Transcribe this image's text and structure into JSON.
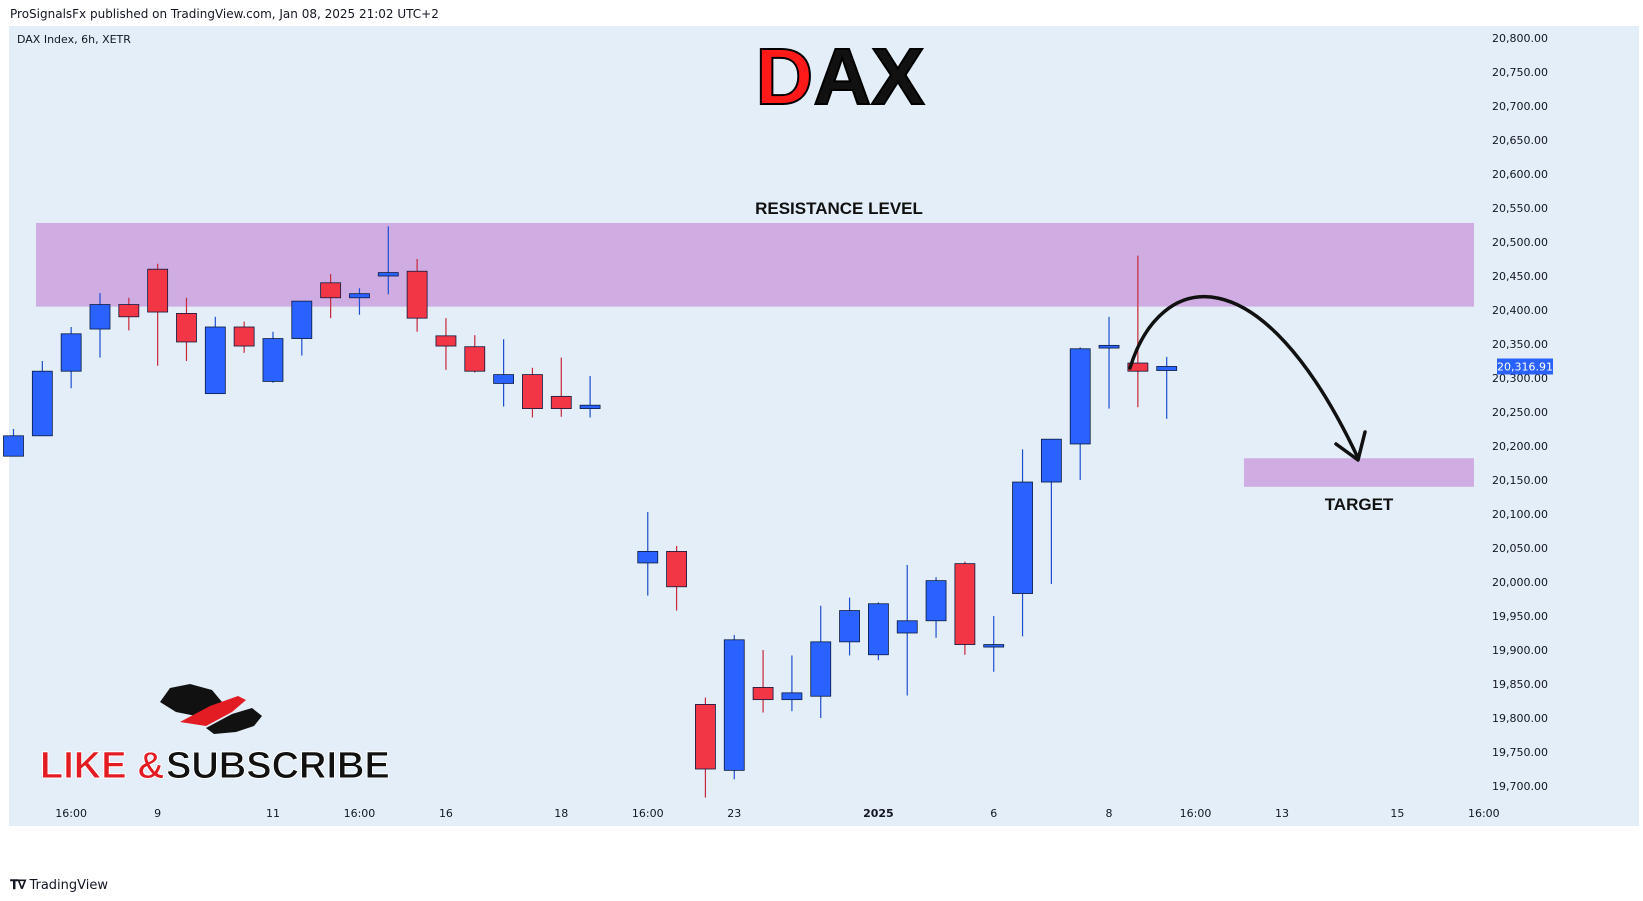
{
  "header": {
    "published": "ProSignalsFx published on TradingView.com, Jan 08, 2025 21:02 UTC+2"
  },
  "footer": {
    "brand": "TradingView",
    "logo_icon": "tradingview-logo-icon"
  },
  "chart_data": {
    "type": "candlestick",
    "title": "DAX",
    "title_first_letter": "D",
    "title_rest": "AX",
    "symbol_info": "DAX Index, 6h, XETR",
    "ylim": [
      19680,
      20820
    ],
    "y_ticks": [
      "20,800.00",
      "20,750.00",
      "20,700.00",
      "20,650.00",
      "20,600.00",
      "20,550.00",
      "20,500.00",
      "20,450.00",
      "20,400.00",
      "20,350.00",
      "20,300.00",
      "20,250.00",
      "20,200.00",
      "20,150.00",
      "20,100.00",
      "20,050.00",
      "20,000.00",
      "19,950.00",
      "19,900.00",
      "19,850.00",
      "19,800.00",
      "19,750.00",
      "19,700.00"
    ],
    "y_tick_values": [
      20800,
      20750,
      20700,
      20650,
      20600,
      20550,
      20500,
      20450,
      20400,
      20350,
      20300,
      20250,
      20200,
      20150,
      20100,
      20050,
      20000,
      19950,
      19900,
      19850,
      19800,
      19750,
      19700
    ],
    "x_tick_labels": [
      {
        "label": "16:00",
        "slot": 2
      },
      {
        "label": "9",
        "slot": 5
      },
      {
        "label": "11",
        "slot": 9
      },
      {
        "label": "16:00",
        "slot": 12
      },
      {
        "label": "16",
        "slot": 15
      },
      {
        "label": "18",
        "slot": 19
      },
      {
        "label": "16:00",
        "slot": 22
      },
      {
        "label": "23",
        "slot": 25
      },
      {
        "label": "2025",
        "slot": 30,
        "bold": true
      },
      {
        "label": "6",
        "slot": 34
      },
      {
        "label": "8",
        "slot": 38
      },
      {
        "label": "16:00",
        "slot": 41
      },
      {
        "label": "13",
        "slot": 44
      },
      {
        "label": "15",
        "slot": 48
      },
      {
        "label": "16:00",
        "slot": 51
      }
    ],
    "last_price": "20,316.91",
    "last_price_value": 20316.91,
    "candles": [
      {
        "slot": 0,
        "o": 20185,
        "h": 20225,
        "l": 20185,
        "c": 20215
      },
      {
        "slot": 1,
        "o": 20215,
        "h": 20325,
        "l": 20215,
        "c": 20310
      },
      {
        "slot": 2,
        "o": 20310,
        "h": 20375,
        "l": 20285,
        "c": 20365
      },
      {
        "slot": 3,
        "o": 20372,
        "h": 20425,
        "l": 20330,
        "c": 20408
      },
      {
        "slot": 4,
        "o": 20408,
        "h": 20418,
        "l": 20370,
        "c": 20390
      },
      {
        "slot": 5,
        "o": 20460,
        "h": 20468,
        "l": 20318,
        "c": 20397
      },
      {
        "slot": 6,
        "o": 20395,
        "h": 20418,
        "l": 20325,
        "c": 20353
      },
      {
        "slot": 7,
        "o": 20277,
        "h": 20390,
        "l": 20277,
        "c": 20375
      },
      {
        "slot": 8,
        "o": 20375,
        "h": 20383,
        "l": 20337,
        "c": 20347
      },
      {
        "slot": 9,
        "o": 20295,
        "h": 20368,
        "l": 20293,
        "c": 20358
      },
      {
        "slot": 10,
        "o": 20358,
        "h": 20413,
        "l": 20333,
        "c": 20413
      },
      {
        "slot": 11,
        "o": 20440,
        "h": 20453,
        "l": 20388,
        "c": 20418
      },
      {
        "slot": 12,
        "o": 20418,
        "h": 20432,
        "l": 20393,
        "c": 20424
      },
      {
        "slot": 13,
        "o": 20450,
        "h": 20523,
        "l": 20423,
        "c": 20455
      },
      {
        "slot": 14,
        "o": 20457,
        "h": 20475,
        "l": 20368,
        "c": 20388
      },
      {
        "slot": 15,
        "o": 20362,
        "h": 20388,
        "l": 20312,
        "c": 20347
      },
      {
        "slot": 16,
        "o": 20346,
        "h": 20363,
        "l": 20308,
        "c": 20310
      },
      {
        "slot": 17,
        "o": 20292,
        "h": 20357,
        "l": 20258,
        "c": 20305
      },
      {
        "slot": 18,
        "o": 20305,
        "h": 20315,
        "l": 20242,
        "c": 20255
      },
      {
        "slot": 19,
        "o": 20273,
        "h": 20330,
        "l": 20243,
        "c": 20255
      },
      {
        "slot": 20,
        "o": 20255,
        "h": 20303,
        "l": 20242,
        "c": 20260
      },
      {
        "slot": 22,
        "o": 20028,
        "h": 20103,
        "l": 19980,
        "c": 20045
      },
      {
        "slot": 23,
        "o": 20045,
        "h": 20053,
        "l": 19958,
        "c": 19993
      },
      {
        "slot": 24,
        "o": 19820,
        "h": 19830,
        "l": 19683,
        "c": 19725
      },
      {
        "slot": 25,
        "o": 19723,
        "h": 19922,
        "l": 19710,
        "c": 19915
      },
      {
        "slot": 26,
        "o": 19845,
        "h": 19900,
        "l": 19808,
        "c": 19827
      },
      {
        "slot": 27,
        "o": 19827,
        "h": 19892,
        "l": 19810,
        "c": 19837
      },
      {
        "slot": 28,
        "o": 19832,
        "h": 19965,
        "l": 19800,
        "c": 19912
      },
      {
        "slot": 29,
        "o": 19912,
        "h": 19977,
        "l": 19892,
        "c": 19958
      },
      {
        "slot": 30,
        "o": 19893,
        "h": 19970,
        "l": 19885,
        "c": 19968
      },
      {
        "slot": 31,
        "o": 19925,
        "h": 20025,
        "l": 19833,
        "c": 19943
      },
      {
        "slot": 32,
        "o": 19943,
        "h": 20007,
        "l": 19918,
        "c": 20002
      },
      {
        "slot": 33,
        "o": 20027,
        "h": 20030,
        "l": 19893,
        "c": 19908
      },
      {
        "slot": 34,
        "o": 19908,
        "h": 19950,
        "l": 19868,
        "c": 19908
      },
      {
        "slot": 35,
        "o": 19983,
        "h": 20195,
        "l": 19920,
        "c": 20147
      },
      {
        "slot": 36,
        "o": 20147,
        "h": 20210,
        "l": 19997,
        "c": 20210
      },
      {
        "slot": 37,
        "o": 20203,
        "h": 20345,
        "l": 20150,
        "c": 20343
      },
      {
        "slot": 38,
        "o": 20344,
        "h": 20390,
        "l": 20255,
        "c": 20348
      },
      {
        "slot": 39,
        "o": 20322,
        "h": 20480,
        "l": 20257,
        "c": 20310
      },
      {
        "slot": 40,
        "o": 20311,
        "h": 20331,
        "l": 20240,
        "c": 20317
      }
    ],
    "colors": {
      "up": "#2962ff",
      "down": "#f23645",
      "zone": "#cda8e0",
      "background": "#e3eef8",
      "title_red": "#ff1a1a",
      "title_black": "#111111"
    },
    "annotations": {
      "resistance_label": "RESISTANCE LEVEL",
      "resistance_zone": [
        20405,
        20528
      ],
      "target_label": "TARGET",
      "target_zone": [
        20140,
        20182
      ],
      "projection": "curved-arrow-down-to-target"
    },
    "promo": {
      "text_like": "LIKE &",
      "text_subscribe": "SUBSCRIBE",
      "logo_icon": "bull-bear-logo-icon"
    }
  }
}
